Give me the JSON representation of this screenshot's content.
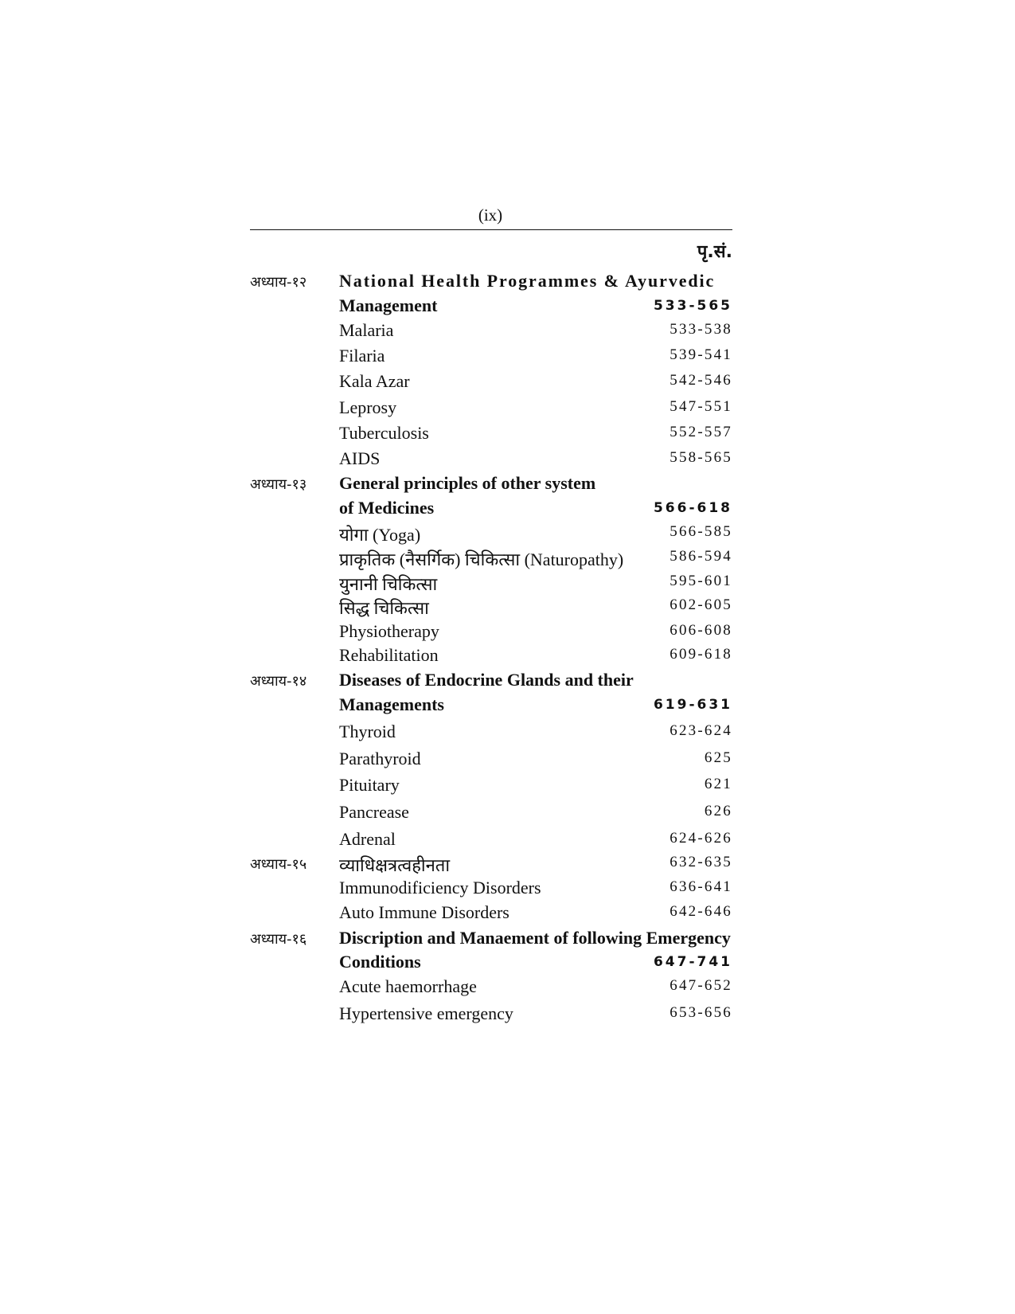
{
  "page_number": "(ix)",
  "page_column_heading": "पृ.सं.",
  "rows": [
    {
      "chapter": "अध्याय-१२",
      "title": "National Health Programmes & Ayurvedic",
      "pages": "",
      "bold": true
    },
    {
      "chapter": "",
      "title": "Management",
      "pages": "533-565",
      "bold": true
    },
    {
      "chapter": "",
      "title": "Malaria",
      "pages": "533-538",
      "bold": false
    },
    {
      "chapter": "",
      "title": "Filaria",
      "pages": "539-541",
      "bold": false
    },
    {
      "chapter": "",
      "title": "Kala Azar",
      "pages": "542-546",
      "bold": false
    },
    {
      "chapter": "",
      "title": "Leprosy",
      "pages": "547-551",
      "bold": false
    },
    {
      "chapter": "",
      "title": "Tuberculosis",
      "pages": "552-557",
      "bold": false
    },
    {
      "chapter": "",
      "title": "AIDS",
      "pages": "558-565",
      "bold": false
    },
    {
      "chapter": "अध्याय-१३",
      "title": "General principles of other system",
      "pages": "",
      "bold": true
    },
    {
      "chapter": "",
      "title": "of Medicines",
      "pages": "566-618",
      "bold": true
    },
    {
      "chapter": "",
      "title": "योगा (Yoga)",
      "pages": "566-585",
      "bold": false
    },
    {
      "chapter": "",
      "title": "प्राकृतिक (नैसर्गिक) चिकित्सा (Naturopathy)",
      "pages": "586-594",
      "bold": false
    },
    {
      "chapter": "",
      "title": "युनानी चिकित्सा",
      "pages": "595-601",
      "bold": false
    },
    {
      "chapter": "",
      "title": "सिद्ध चिकित्सा",
      "pages": "602-605",
      "bold": false
    },
    {
      "chapter": "",
      "title": "Physiotherapy",
      "pages": "606-608",
      "bold": false
    },
    {
      "chapter": "",
      "title": "Rehabilitation",
      "pages": "609-618",
      "bold": false
    },
    {
      "chapter": "अध्याय-१४",
      "title": "Diseases of Endocrine Glands and their",
      "pages": "",
      "bold": true
    },
    {
      "chapter": "",
      "title": "Managements",
      "pages": "619-631",
      "bold": true
    },
    {
      "chapter": "",
      "title": "Thyroid",
      "pages": "623-624",
      "bold": false
    },
    {
      "chapter": "",
      "title": "Parathyroid",
      "pages": "625",
      "bold": false
    },
    {
      "chapter": "",
      "title": "Pituitary",
      "pages": "621",
      "bold": false
    },
    {
      "chapter": "",
      "title": "Pancrease",
      "pages": "626",
      "bold": false
    },
    {
      "chapter": "",
      "title": "Adrenal",
      "pages": "624-626",
      "bold": false
    },
    {
      "chapter": "अध्याय-१५",
      "title": "व्याधिक्षत्रत्वहीनता",
      "pages": "632-635",
      "bold": false
    },
    {
      "chapter": "",
      "title": "Immunodificiency Disorders",
      "pages": "636-641",
      "bold": false
    },
    {
      "chapter": "",
      "title": "Auto Immune Disorders",
      "pages": "642-646",
      "bold": false
    },
    {
      "chapter": "अध्याय-१६",
      "title": "Discription and Manaement of following Emergency",
      "pages": "",
      "bold": true
    },
    {
      "chapter": "",
      "title": "Conditions",
      "pages": "647-741",
      "bold": true
    },
    {
      "chapter": "",
      "title": "Acute haemorrhage",
      "pages": "647-652",
      "bold": false
    },
    {
      "chapter": "",
      "title": "Hypertensive emergency",
      "pages": "653-656",
      "bold": false
    }
  ]
}
